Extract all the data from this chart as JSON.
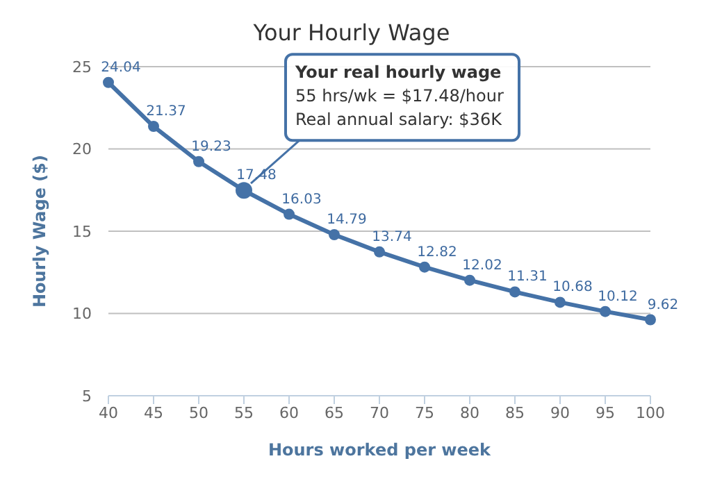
{
  "chart_data": {
    "type": "line",
    "title": "Your Hourly Wage",
    "xlabel": "Hours worked per week",
    "ylabel": "Hourly Wage ($)",
    "categories": [
      "40",
      "45",
      "50",
      "55",
      "60",
      "65",
      "70",
      "75",
      "80",
      "85",
      "90",
      "95",
      "100"
    ],
    "series": [
      {
        "color": "#4572a7",
        "values": [
          24.04,
          21.37,
          19.23,
          17.48,
          16.03,
          14.79,
          13.74,
          12.82,
          12.02,
          11.31,
          10.68,
          10.12,
          9.62
        ]
      }
    ],
    "ylim": [
      5,
      25
    ],
    "yticks": [
      5,
      10,
      15,
      20,
      25
    ],
    "grid": "y",
    "marker": "circle",
    "line_style": "solid",
    "data_labels": true,
    "annotations": [
      {
        "text": "Your real hourly wage\n55 hrs/wk = $17.48/hour\nReal annual salary: $36K",
        "x": "55",
        "y": 17.48
      }
    ]
  }
}
